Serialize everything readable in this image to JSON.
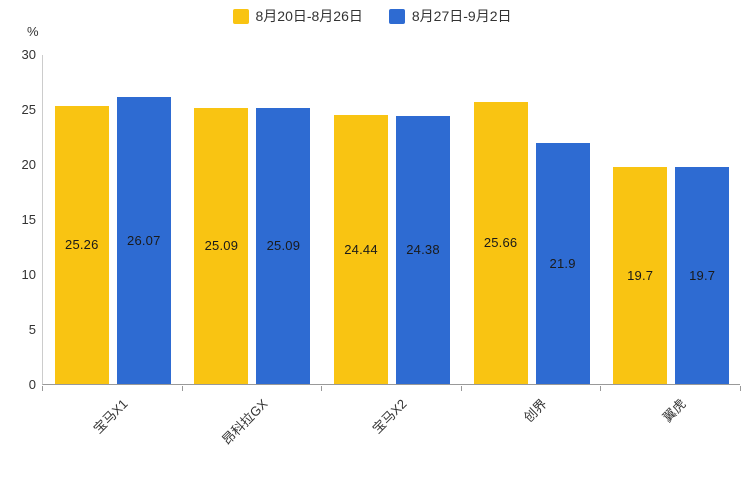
{
  "chart_data": {
    "type": "bar",
    "title": "",
    "unit": "%",
    "xlabel": "",
    "ylabel": "%",
    "categories": [
      "宝马X1",
      "昂科拉GX",
      "宝马X2",
      "创界",
      "翼虎"
    ],
    "series": [
      {
        "name": "8月20日-8月26日",
        "color": "#F9C412",
        "values": [
          25.26,
          25.09,
          24.44,
          25.66,
          19.7
        ]
      },
      {
        "name": "8月27日-9月2日",
        "color": "#2E6BD2",
        "values": [
          26.07,
          25.09,
          24.38,
          21.9,
          19.7
        ]
      }
    ],
    "ylim": [
      0,
      30
    ],
    "yticks": [
      0,
      5,
      10,
      15,
      20,
      25,
      30
    ],
    "grid": false,
    "legend_position": "top",
    "value_labels": "inside-center",
    "category_label_rotation": 45
  }
}
